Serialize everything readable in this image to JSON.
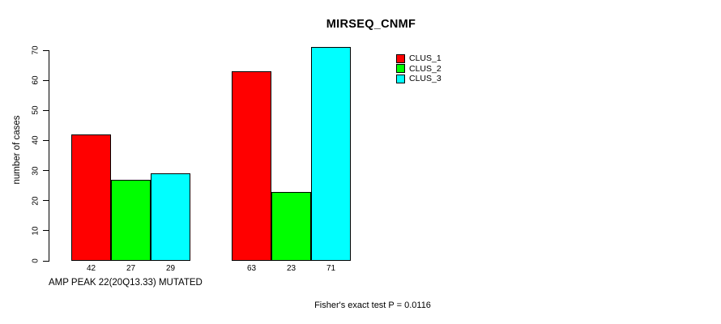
{
  "chart_data": {
    "type": "bar",
    "title": "MIRSEQ_CNMF",
    "ylabel": "number of cases",
    "xlabel": "AMP PEAK 22(20Q13.33) MUTATED",
    "annotation": "Fisher's exact test P = 0.0116",
    "ylim": [
      0,
      70
    ],
    "yticks": [
      0,
      10,
      20,
      30,
      40,
      50,
      60,
      70
    ],
    "grid": false,
    "background": "#ffffff",
    "axis_color": "#000000",
    "text_color": "#000000",
    "categories": [
      "",
      ""
    ],
    "series": [
      {
        "name": "CLUS_1",
        "color": "#ff0000",
        "values": [
          42,
          63
        ]
      },
      {
        "name": "CLUS_2",
        "color": "#00ff00",
        "values": [
          27,
          23
        ]
      },
      {
        "name": "CLUS_3",
        "color": "#00ffff",
        "values": [
          29,
          71
        ]
      }
    ],
    "bar_value_labels_shown": true,
    "legend": {
      "position": "top-right",
      "entries": [
        "CLUS_1",
        "CLUS_2",
        "CLUS_3"
      ]
    }
  }
}
